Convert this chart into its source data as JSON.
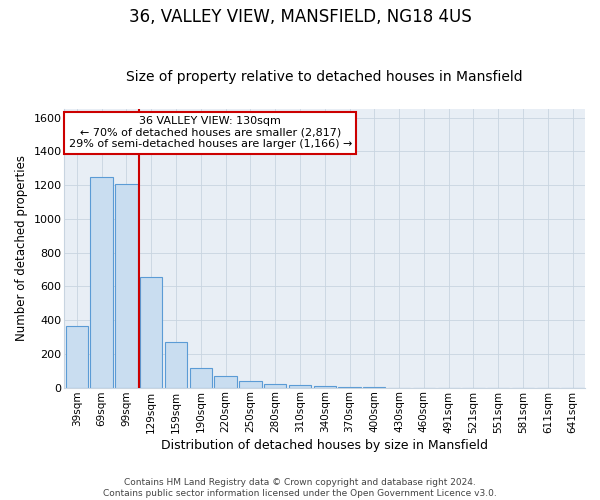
{
  "title": "36, VALLEY VIEW, MANSFIELD, NG18 4US",
  "subtitle": "Size of property relative to detached houses in Mansfield",
  "xlabel": "Distribution of detached houses by size in Mansfield",
  "ylabel": "Number of detached properties",
  "footer_line1": "Contains HM Land Registry data © Crown copyright and database right 2024.",
  "footer_line2": "Contains public sector information licensed under the Open Government Licence v3.0.",
  "bar_labels": [
    "39sqm",
    "69sqm",
    "99sqm",
    "129sqm",
    "159sqm",
    "190sqm",
    "220sqm",
    "250sqm",
    "280sqm",
    "310sqm",
    "340sqm",
    "370sqm",
    "400sqm",
    "430sqm",
    "460sqm",
    "491sqm",
    "521sqm",
    "551sqm",
    "581sqm",
    "611sqm",
    "641sqm"
  ],
  "bar_values": [
    365,
    1250,
    1210,
    655,
    270,
    118,
    68,
    38,
    22,
    15,
    8,
    3,
    3,
    0,
    0,
    0,
    0,
    0,
    0,
    0,
    0
  ],
  "bar_color": "#c9ddf0",
  "bar_edge_color": "#5b9bd5",
  "grid_color": "#c8d4e0",
  "plot_bg_color": "#e8eef5",
  "figure_bg_color": "#ffffff",
  "red_line_color": "#cc0000",
  "red_line_x": 2.5,
  "annotation_text_line1": "36 VALLEY VIEW: 130sqm",
  "annotation_text_line2": "← 70% of detached houses are smaller (2,817)",
  "annotation_text_line3": "29% of semi-detached houses are larger (1,166) →",
  "annotation_box_color": "#ffffff",
  "annotation_box_edge_color": "#cc0000",
  "ylim": [
    0,
    1650
  ],
  "yticks": [
    0,
    200,
    400,
    600,
    800,
    1000,
    1200,
    1400,
    1600
  ],
  "title_fontsize": 12,
  "subtitle_fontsize": 10
}
